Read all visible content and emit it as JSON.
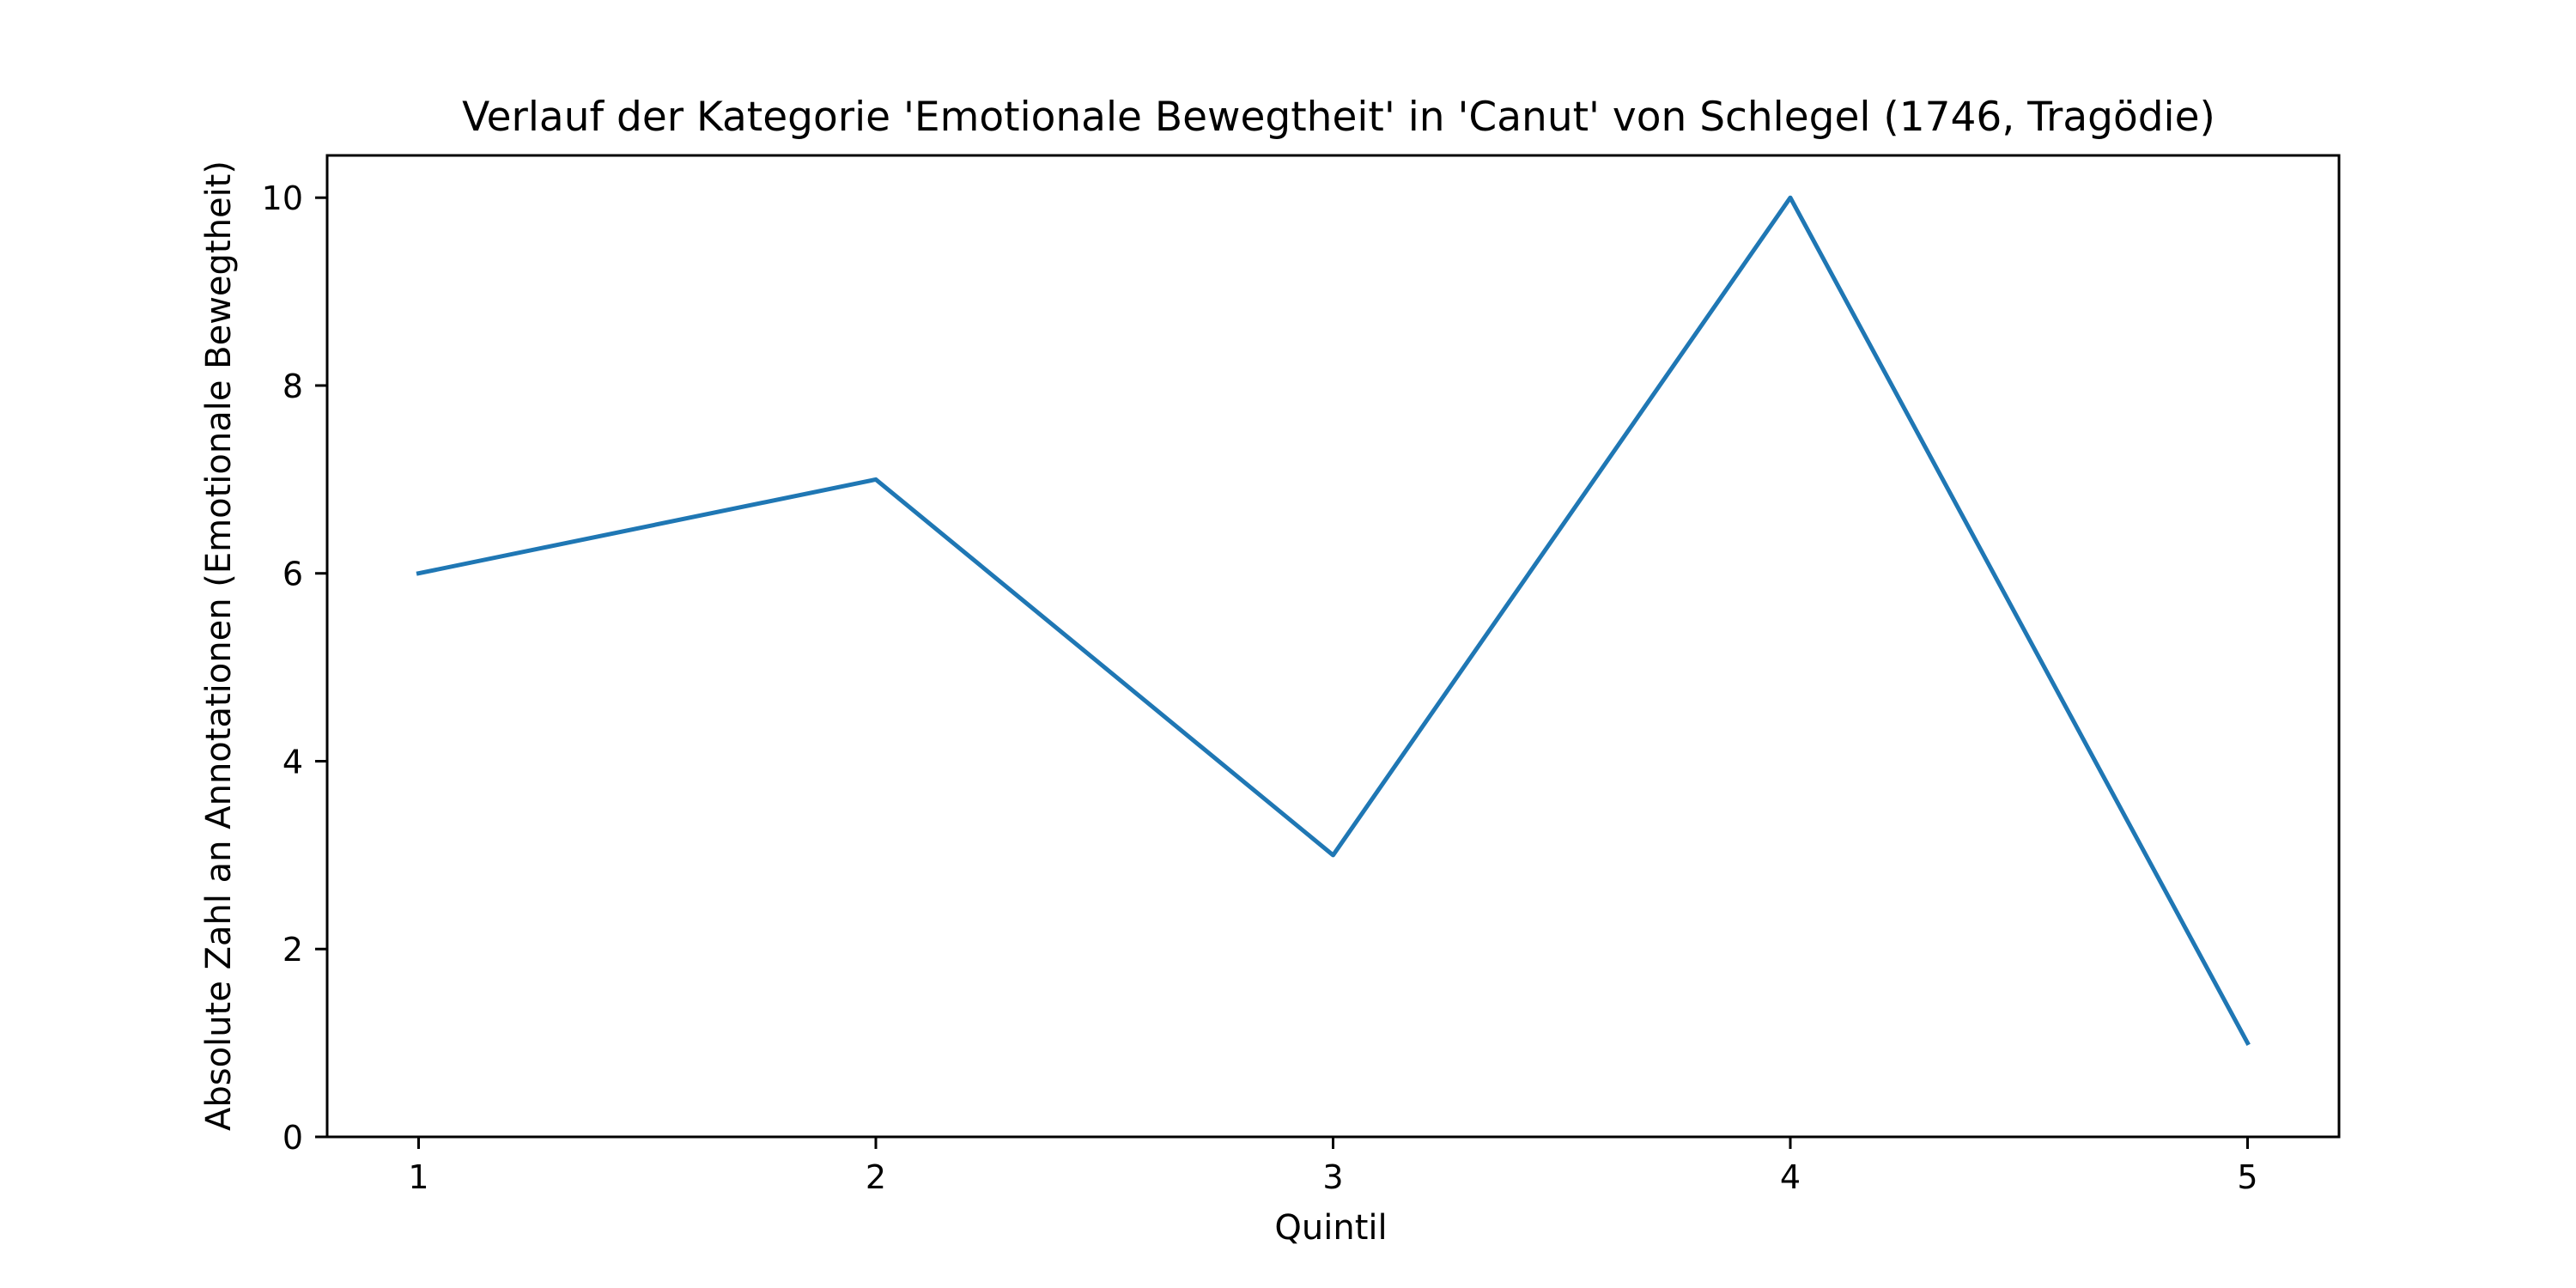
{
  "chart_data": {
    "type": "line",
    "title": "Verlauf der Kategorie 'Emotionale Bewegtheit' in 'Canut' von Schlegel (1746, Tragödie)",
    "xlabel": "Quintil",
    "ylabel": "Absolute Zahl an Annotationen (Emotionale Bewegtheit)",
    "x": [
      1,
      2,
      3,
      4,
      5
    ],
    "series": [
      {
        "values": [
          6,
          7,
          3,
          10,
          1
        ],
        "color": "#1f77b4"
      }
    ],
    "xlim": [
      0.8,
      5.2
    ],
    "ylim": [
      0,
      10.45
    ],
    "x_ticks": [
      1,
      2,
      3,
      4,
      5
    ],
    "x_tick_labels": [
      "1",
      "2",
      "3",
      "4",
      "5"
    ],
    "y_ticks": [
      0,
      2,
      4,
      6,
      8,
      10
    ],
    "y_tick_labels": [
      "0",
      "2",
      "4",
      "6",
      "8",
      "10"
    ],
    "grid": false,
    "legend": "none"
  }
}
